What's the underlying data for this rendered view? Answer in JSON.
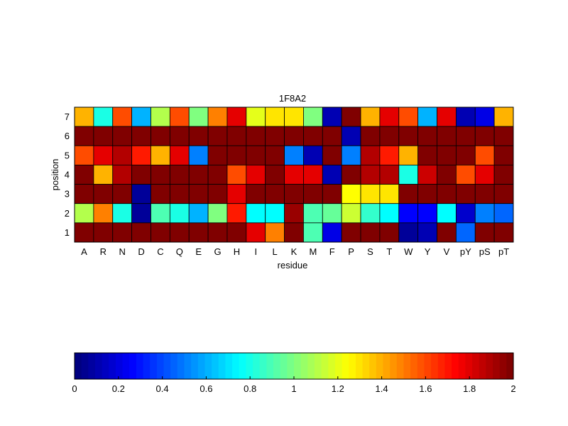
{
  "chart_data": {
    "type": "heatmap",
    "title": "1F8A2",
    "xlabel": "residue",
    "ylabel": "position",
    "x_categories": [
      "A",
      "R",
      "N",
      "D",
      "C",
      "Q",
      "E",
      "G",
      "H",
      "I",
      "L",
      "K",
      "M",
      "F",
      "P",
      "S",
      "T",
      "W",
      "Y",
      "V",
      "pY",
      "pS",
      "pT"
    ],
    "y_categories": [
      "7",
      "6",
      "5",
      "4",
      "3",
      "2",
      "1"
    ],
    "values": [
      [
        1.4,
        0.8,
        1.6,
        0.6,
        1.1,
        1.6,
        1.0,
        1.5,
        1.8,
        1.2,
        1.3,
        1.3,
        1.0,
        0.1,
        2.0,
        1.4,
        1.8,
        1.6,
        0.6,
        1.8,
        0.1,
        0.2,
        1.4
      ],
      [
        2.0,
        2.0,
        2.0,
        2.0,
        2.0,
        2.0,
        2.0,
        2.0,
        2.0,
        2.0,
        2.0,
        2.0,
        2.0,
        2.0,
        0.1,
        2.0,
        2.0,
        2.0,
        2.0,
        2.0,
        2.0,
        2.0,
        2.0
      ],
      [
        1.6,
        1.8,
        1.9,
        1.7,
        1.4,
        1.8,
        0.5,
        2.0,
        2.0,
        2.0,
        2.0,
        0.5,
        0.1,
        2.0,
        0.5,
        1.9,
        1.7,
        1.4,
        2.0,
        2.0,
        2.0,
        1.6,
        2.0
      ],
      [
        2.0,
        1.4,
        1.9,
        2.0,
        2.0,
        2.0,
        2.0,
        2.0,
        1.6,
        1.8,
        2.0,
        1.8,
        1.8,
        0.1,
        2.0,
        1.9,
        1.9,
        0.8,
        1.85,
        2.0,
        1.6,
        1.8,
        2.0
      ],
      [
        2.0,
        2.0,
        2.0,
        0.05,
        2.0,
        2.0,
        2.0,
        2.0,
        1.8,
        2.0,
        2.0,
        2.0,
        2.0,
        2.0,
        1.25,
        1.3,
        1.3,
        2.0,
        2.0,
        2.0,
        2.0,
        2.0,
        2.0
      ],
      [
        1.1,
        1.5,
        0.8,
        0.05,
        0.9,
        0.8,
        0.6,
        1.0,
        1.7,
        0.75,
        0.75,
        1.95,
        0.9,
        0.95,
        1.15,
        0.85,
        0.75,
        0.25,
        0.25,
        0.75,
        0.15,
        0.5,
        0.45
      ],
      [
        2.0,
        2.0,
        2.0,
        2.0,
        2.0,
        2.0,
        2.0,
        2.0,
        2.0,
        1.8,
        1.5,
        2.0,
        0.9,
        0.2,
        2.0,
        2.0,
        2.0,
        0.05,
        0.1,
        2.0,
        0.45,
        2.0,
        2.0
      ]
    ],
    "colorbar": {
      "colormap": "jet",
      "range": [
        0,
        2
      ],
      "tick_labels": [
        "0",
        "0.2",
        "0.4",
        "0.6",
        "0.8",
        "1",
        "1.2",
        "1.4",
        "1.6",
        "1.8",
        "2"
      ]
    },
    "grid": true
  }
}
